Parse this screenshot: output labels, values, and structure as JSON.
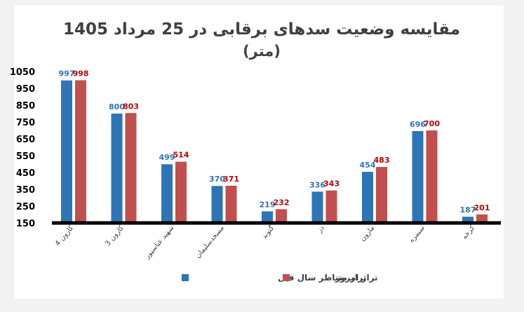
{
  "chart_data": {
    "type": "bar",
    "title_line1": "مقایسه وضعیت سدهای برقابی در 25 مرداد 1405",
    "title_line2": "(متر)",
    "xlabel": "",
    "ylabel": "",
    "ylim": [
      150,
      1050
    ],
    "yticks": [
      "1050",
      "950",
      "850",
      "750",
      "650",
      "550",
      "450",
      "350",
      "250",
      "150"
    ],
    "categories": [
      "کارون 4",
      "کارون 3",
      "شهید عباسپور",
      "مسجدسلیمان",
      "گتوند",
      "دز",
      "مارون",
      "سیمره",
      "کرخه"
    ],
    "series": [
      {
        "name": "تراز متناظر سال قبل",
        "color": "#2e75b6",
        "label_color": "#2e75b6",
        "values": [
          997,
          800,
          499,
          370,
          219,
          336,
          454,
          696,
          187
        ]
      },
      {
        "name": "تراز امروز",
        "color": "#c0504d",
        "label_color": "#c00000",
        "values": [
          998,
          803,
          514,
          371,
          232,
          343,
          483,
          700,
          201
        ]
      }
    ],
    "legend_position": "bottom-center",
    "grid": false
  }
}
